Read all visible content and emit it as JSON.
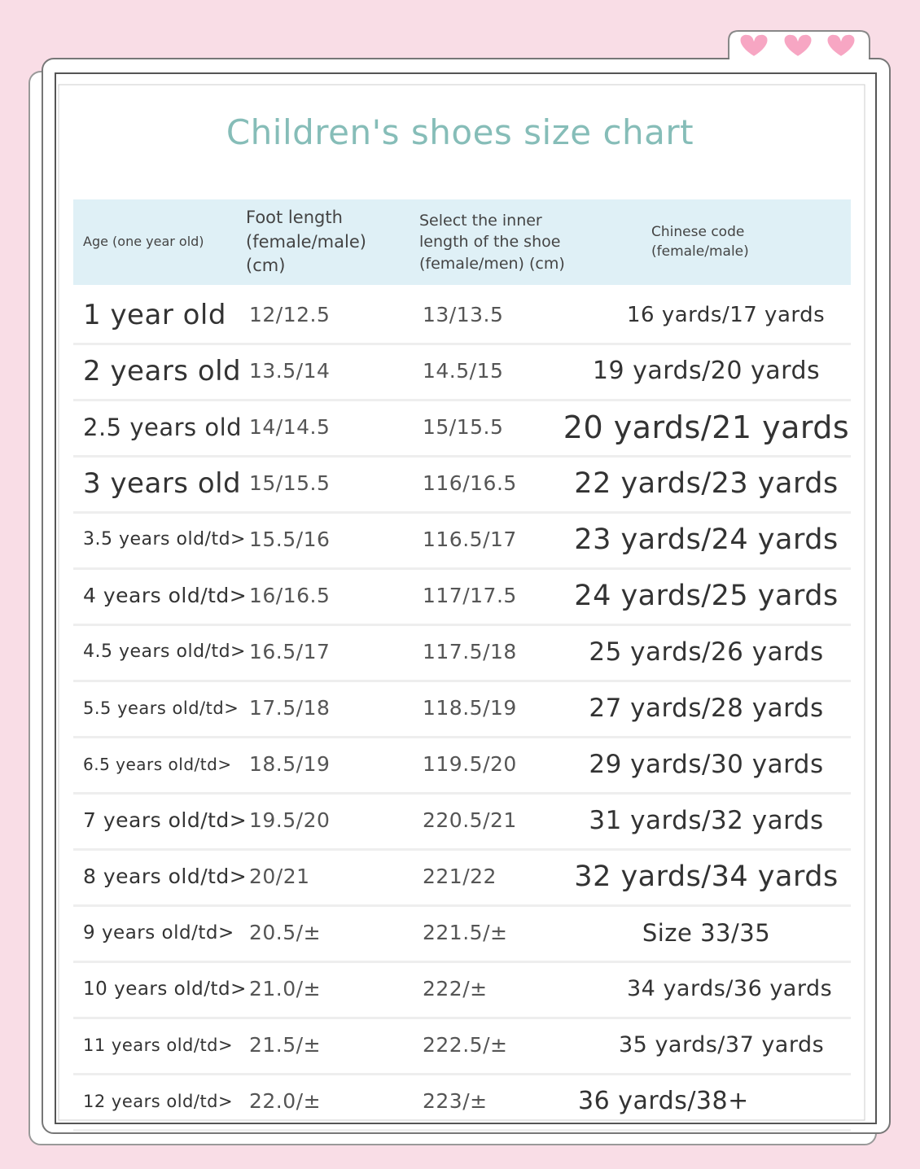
{
  "title": "Children's shoes size chart",
  "table": {
    "header": [
      "Age (one year old)",
      "Foot length (female/male) (cm)",
      "Select the inner length of the shoe (female/men) (cm)",
      "Chinese code (female/male)"
    ],
    "rows": [
      [
        "1 year old",
        "12/12.5",
        "13/13.5",
        "16 yards/17 yards"
      ],
      [
        "2 years old",
        "13.5/14",
        "14.5/15",
        "19 yards/20 yards"
      ],
      [
        "2.5 years old",
        "14/14.5",
        "15/15.5",
        "20 yards/21 yards"
      ],
      [
        "3 years old",
        "15/15.5",
        "116/16.5",
        "22 yards/23 yards"
      ],
      [
        "3.5 years old/td>",
        "15.5/16",
        "116.5/17",
        "23 yards/24 yards"
      ],
      [
        "4 years old/td>",
        "16/16.5",
        "117/17.5",
        "24 yards/25 yards"
      ],
      [
        "4.5 years old/td>",
        "16.5/17",
        "117.5/18",
        "25 yards/26 yards"
      ],
      [
        "5.5 years old/td>",
        "17.5/18",
        "118.5/19",
        "27 yards/28 yards"
      ],
      [
        "6.5 years old/td>",
        "18.5/19",
        "119.5/20",
        "29 yards/30 yards"
      ],
      [
        "7 years old/td>",
        "19.5/20",
        "220.5/21",
        "31 yards/32 yards"
      ],
      [
        "8 years old/td>",
        "20/21",
        "221/22",
        "32 yards/34 yards"
      ],
      [
        "9 years old/td>",
        "20.5/±",
        "221.5/±",
        "Size 33/35"
      ],
      [
        "10 years old/td>",
        "21.0/±",
        "222/±",
        "34 yards/36 yards"
      ],
      [
        "11 years old/td>",
        "21.5/±",
        "222.5/±",
        "35 yards/37 yards"
      ],
      [
        "12 years old/td>",
        "22.0/±",
        "223/±",
        "36 yards/38+"
      ]
    ]
  }
}
